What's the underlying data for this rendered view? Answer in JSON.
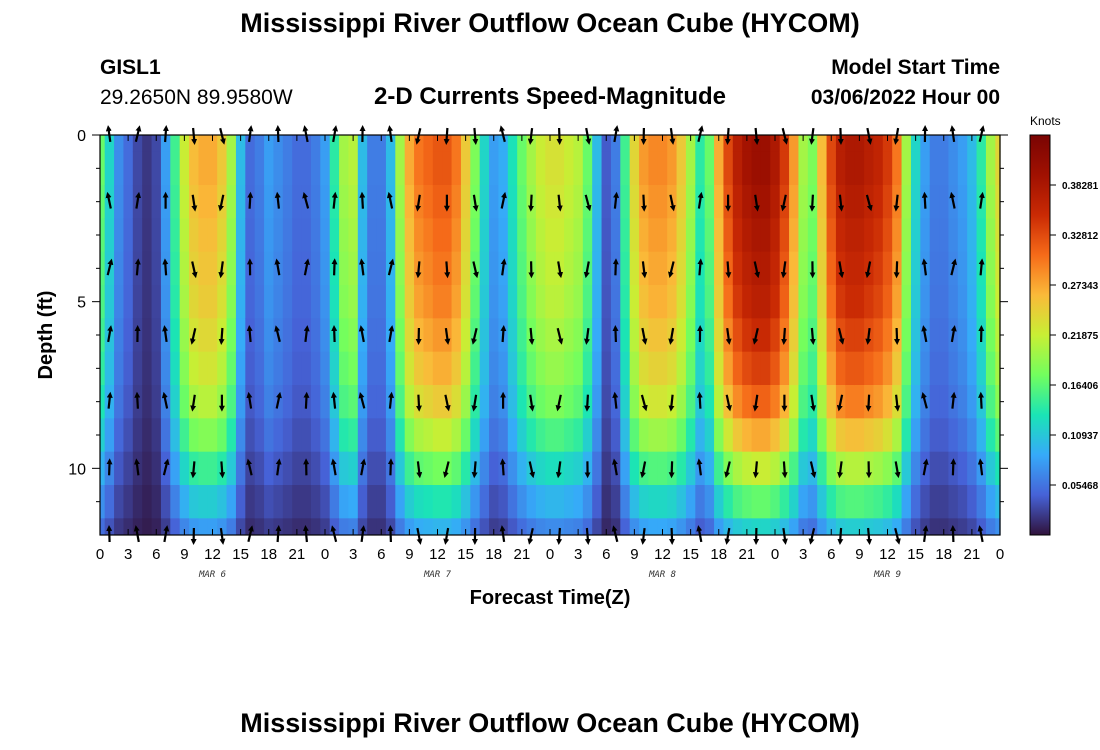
{
  "header": {
    "title": "Mississippi River Outflow Ocean Cube (HYCOM)",
    "station_id": "GISL1",
    "station_coords": "29.2650N  89.9580W",
    "subtitle": "2-D Currents Speed-Magnitude",
    "model_start_label": "Model Start Time",
    "model_start_value": "03/06/2022 Hour 00"
  },
  "footer": {
    "title": "Mississippi River Outflow Ocean Cube (HYCOM)"
  },
  "chart_data": {
    "type": "heatmap",
    "xlabel": "Forecast Time(Z)",
    "ylabel": "Depth (ft)",
    "x_range_hours": [
      0,
      96
    ],
    "ylim": [
      0,
      12
    ],
    "y_ticks": [
      0,
      5,
      10
    ],
    "y_tick_labels": [
      "0",
      "5",
      "10"
    ],
    "x_tick_labels": [
      "0",
      "3",
      "6",
      "9",
      "12",
      "15",
      "18",
      "21",
      "0",
      "3",
      "6",
      "9",
      "12",
      "15",
      "18",
      "21",
      "0",
      "3",
      "6",
      "9",
      "12",
      "15",
      "18",
      "21",
      "0",
      "3",
      "6",
      "9",
      "12",
      "15",
      "18",
      "21",
      "0"
    ],
    "day_labels": [
      {
        "label": "MAR 6",
        "hour": 12
      },
      {
        "label": "MAR 7",
        "hour": 36
      },
      {
        "label": "MAR 8",
        "hour": 60
      },
      {
        "label": "MAR 9",
        "hour": 84
      }
    ],
    "colorbar": {
      "unit": "Knots",
      "min": 0.0,
      "max": 0.4375,
      "tick_values": [
        0.05468,
        0.10937,
        0.16406,
        0.21875,
        0.27343,
        0.32812,
        0.38281
      ],
      "tick_labels": [
        "0.05468",
        "0.10937",
        "0.16406",
        "0.21875",
        "0.27343",
        "0.32812",
        "0.38281"
      ]
    },
    "depth_levels": [
      0,
      1,
      2,
      3,
      4,
      5,
      6,
      7,
      8,
      9,
      10,
      11,
      12
    ],
    "speed_profile_hours": [
      0,
      1,
      2,
      3,
      4,
      5,
      6,
      7,
      8,
      9,
      10,
      11,
      12,
      13,
      14,
      15,
      16,
      17,
      18,
      19,
      20,
      21,
      22,
      23,
      24,
      25,
      26,
      27,
      28,
      29,
      30,
      31,
      32,
      33,
      34,
      35,
      36,
      37,
      38,
      39,
      40,
      41,
      42,
      43,
      44,
      45,
      46,
      47,
      48,
      49,
      50,
      51,
      52,
      53,
      54,
      55,
      56,
      57,
      58,
      59,
      60,
      61,
      62,
      63,
      64,
      65,
      66,
      67,
      68,
      69,
      70,
      71,
      72,
      73,
      74,
      75,
      76,
      77,
      78,
      79,
      80,
      81,
      82,
      83,
      84,
      85,
      86,
      87,
      88,
      89,
      90,
      91,
      92,
      93,
      94,
      95,
      96
    ],
    "surface_speed_knots": [
      0.17,
      0.12,
      0.07,
      0.05,
      0.03,
      0.02,
      0.03,
      0.08,
      0.15,
      0.22,
      0.26,
      0.27,
      0.27,
      0.25,
      0.2,
      0.1,
      0.05,
      0.06,
      0.08,
      0.07,
      0.06,
      0.05,
      0.05,
      0.06,
      0.08,
      0.14,
      0.2,
      0.21,
      0.1,
      0.06,
      0.06,
      0.1,
      0.2,
      0.27,
      0.3,
      0.31,
      0.32,
      0.32,
      0.3,
      0.25,
      0.18,
      0.12,
      0.08,
      0.09,
      0.13,
      0.17,
      0.2,
      0.22,
      0.23,
      0.23,
      0.22,
      0.21,
      0.17,
      0.1,
      0.04,
      0.06,
      0.15,
      0.24,
      0.28,
      0.29,
      0.29,
      0.28,
      0.25,
      0.2,
      0.14,
      0.17,
      0.27,
      0.33,
      0.37,
      0.39,
      0.4,
      0.4,
      0.38,
      0.34,
      0.28,
      0.2,
      0.18,
      0.26,
      0.33,
      0.37,
      0.38,
      0.38,
      0.37,
      0.36,
      0.34,
      0.3,
      0.2,
      0.12,
      0.08,
      0.06,
      0.06,
      0.07,
      0.08,
      0.1,
      0.14,
      0.2,
      0.24
    ],
    "depth_attenuation": [
      1.0,
      1.0,
      0.98,
      0.96,
      0.94,
      0.92,
      0.88,
      0.84,
      0.78,
      0.68,
      0.55,
      0.42,
      0.3
    ]
  }
}
